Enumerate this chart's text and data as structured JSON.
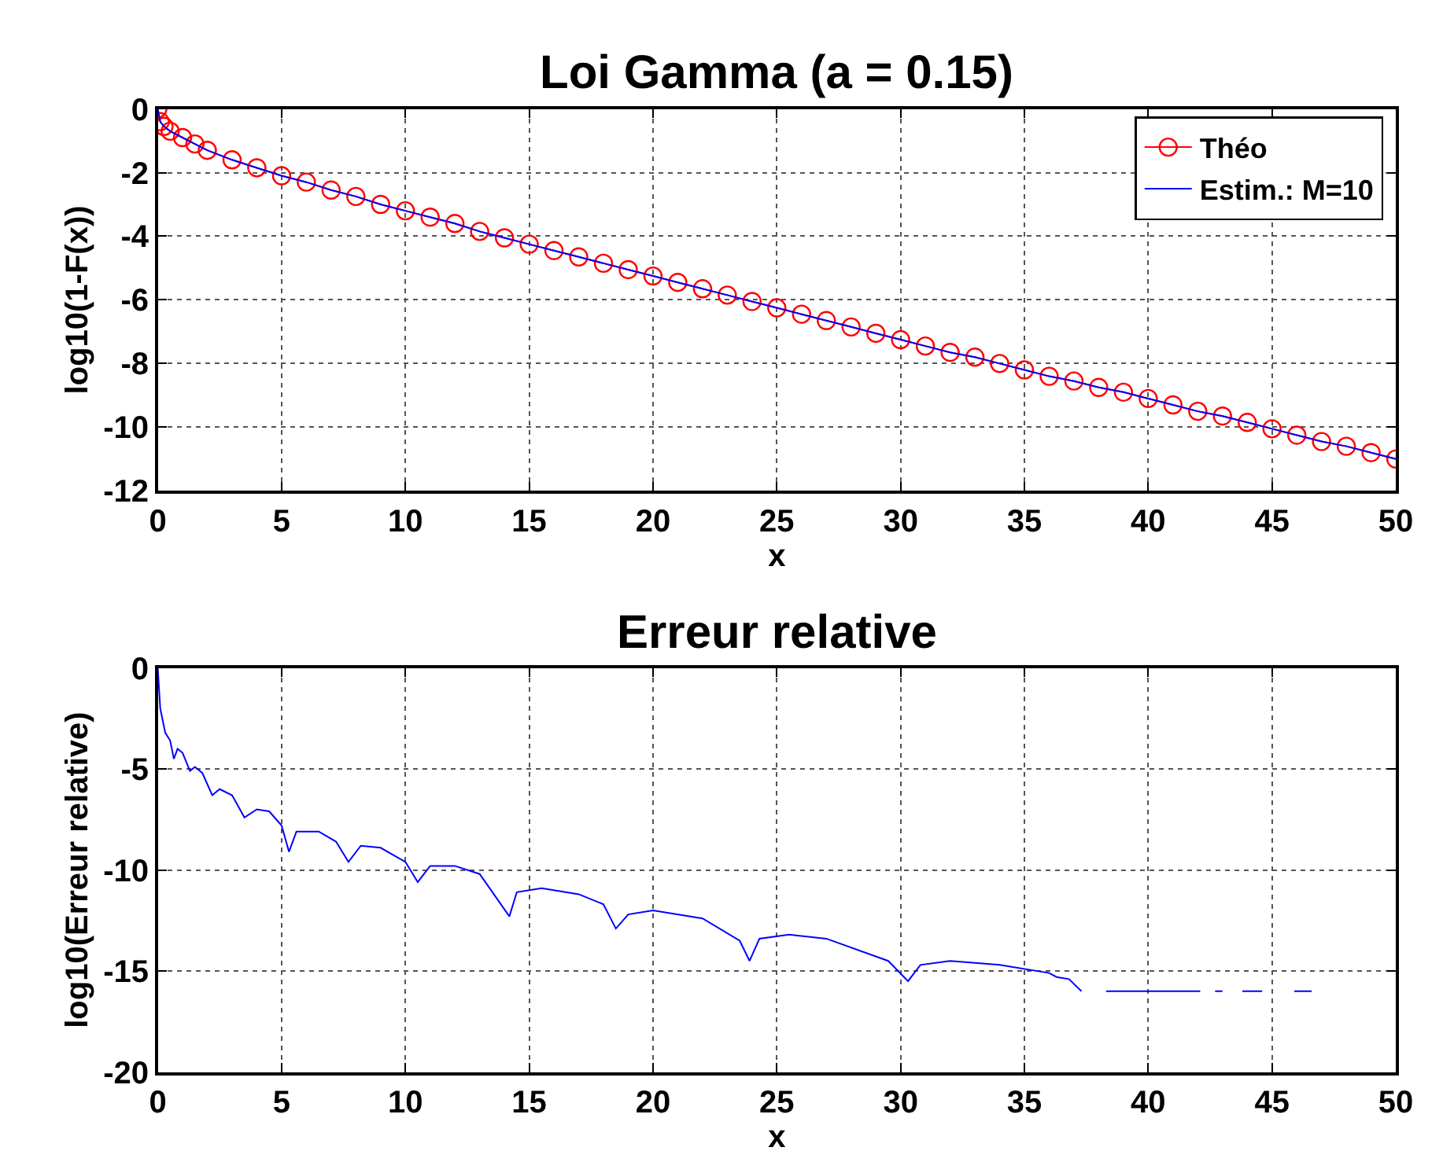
{
  "chart_data": [
    {
      "type": "line",
      "title": "Loi Gamma (a = 0.15)",
      "xlabel": "x",
      "ylabel": "log10(1-F(x))",
      "x": [
        0,
        0.1,
        0.25,
        0.5,
        1,
        1.5,
        2,
        3,
        4,
        5,
        6,
        7,
        8,
        9,
        10,
        11,
        12,
        13,
        14,
        15,
        16,
        17,
        18,
        19,
        20,
        21,
        22,
        23,
        24,
        25,
        26,
        27,
        28,
        29,
        30,
        31,
        32,
        33,
        34,
        35,
        36,
        37,
        38,
        39,
        40,
        41,
        42,
        43,
        44,
        45,
        46,
        47,
        48,
        49,
        50
      ],
      "series": [
        {
          "name": "Théo",
          "color": "#ff0000",
          "marker": "circle",
          "values": [
            0,
            -0.4,
            -0.55,
            -0.7,
            -0.9,
            -1.1,
            -1.3,
            -1.6,
            -1.85,
            -2.1,
            -2.3,
            -2.55,
            -2.75,
            -3.0,
            -3.2,
            -3.4,
            -3.6,
            -3.85,
            -4.05,
            -4.25,
            -4.45,
            -4.65,
            -4.85,
            -5.05,
            -5.25,
            -5.45,
            -5.65,
            -5.85,
            -6.05,
            -6.25,
            -6.45,
            -6.65,
            -6.85,
            -7.05,
            -7.25,
            -7.45,
            -7.65,
            -7.8,
            -8.0,
            -8.2,
            -8.4,
            -8.55,
            -8.75,
            -8.9,
            -9.1,
            -9.3,
            -9.5,
            -9.65,
            -9.85,
            -10.05,
            -10.25,
            -10.45,
            -10.6,
            -10.8,
            -11.0
          ]
        },
        {
          "name": "Estim.: M=10",
          "color": "#0000ff",
          "marker": "none",
          "values": [
            0,
            -0.4,
            -0.55,
            -0.7,
            -0.9,
            -1.1,
            -1.3,
            -1.6,
            -1.85,
            -2.1,
            -2.3,
            -2.55,
            -2.75,
            -3.0,
            -3.2,
            -3.4,
            -3.6,
            -3.85,
            -4.05,
            -4.25,
            -4.45,
            -4.65,
            -4.85,
            -5.05,
            -5.25,
            -5.45,
            -5.65,
            -5.85,
            -6.05,
            -6.25,
            -6.45,
            -6.65,
            -6.85,
            -7.05,
            -7.25,
            -7.45,
            -7.65,
            -7.8,
            -8.0,
            -8.2,
            -8.4,
            -8.55,
            -8.75,
            -8.9,
            -9.1,
            -9.3,
            -9.5,
            -9.65,
            -9.85,
            -10.05,
            -10.25,
            -10.45,
            -10.6,
            -10.8,
            -11.0
          ]
        }
      ],
      "xlim": [
        0,
        50
      ],
      "xticks": [
        0,
        5,
        10,
        15,
        20,
        25,
        30,
        35,
        40,
        45,
        50
      ],
      "ylim": [
        -12,
        0
      ],
      "yticks": [
        -12,
        -10,
        -8,
        -6,
        -4,
        -2,
        0
      ],
      "grid": true,
      "legend": "top right",
      "line_style": "solid"
    },
    {
      "type": "line",
      "title": "Erreur relative",
      "xlabel": "x",
      "ylabel": "log10(Erreur relative)",
      "x": [
        0,
        0.1,
        0.3,
        0.5,
        0.65,
        0.8,
        1.0,
        1.3,
        1.5,
        1.8,
        2.2,
        2.5,
        3,
        3.5,
        4,
        4.5,
        5,
        5.3,
        5.6,
        6.5,
        7.2,
        7.7,
        8.2,
        9,
        10,
        10.5,
        11,
        12,
        13,
        14.2,
        14.5,
        15.5,
        17,
        18,
        18.5,
        19,
        20,
        22,
        23.5,
        23.9,
        24.3,
        25.5,
        27,
        29.5,
        30.3,
        30.8,
        32,
        34,
        36,
        36.3,
        36.8,
        37.3,
        37.8,
        38.3,
        38.6,
        38.7,
        42.1,
        42.4,
        42.7,
        43.0,
        43.4,
        43.8,
        44.6,
        45.5,
        45.9,
        46.6
      ],
      "series": [
        {
          "color": "#0000ff",
          "values": [
            0,
            -2,
            -3.2,
            -3.6,
            -4.5,
            -4,
            -4.2,
            -5.1,
            -4.9,
            -5.2,
            -6.3,
            -6,
            -6.3,
            -7.4,
            -7,
            -7.1,
            -7.8,
            -9.1,
            -8.1,
            -8.1,
            -8.6,
            -9.6,
            -8.8,
            -8.9,
            -9.6,
            -10.6,
            -9.8,
            -9.8,
            -10.2,
            -12.3,
            -11.1,
            -10.9,
            -11.2,
            -11.7,
            -12.9,
            -12.2,
            -12,
            -12.4,
            -13.5,
            -14.5,
            -13.4,
            -13.2,
            -13.4,
            -14.5,
            -15.5,
            -14.7,
            -14.5,
            -14.7,
            -15.1,
            -15.3,
            -15.4,
            -16,
            null,
            -16,
            -16,
            -16,
            -16,
            null,
            -16,
            -16,
            null,
            -16,
            -16,
            null,
            -16,
            -16
          ]
        }
      ],
      "xlim": [
        0,
        50
      ],
      "xticks": [
        0,
        5,
        10,
        15,
        20,
        25,
        30,
        35,
        40,
        45,
        50
      ],
      "ylim": [
        -20,
        0
      ],
      "yticks": [
        -20,
        -15,
        -10,
        -5,
        0
      ],
      "grid": true,
      "legend": false,
      "line_style": "solid"
    }
  ]
}
